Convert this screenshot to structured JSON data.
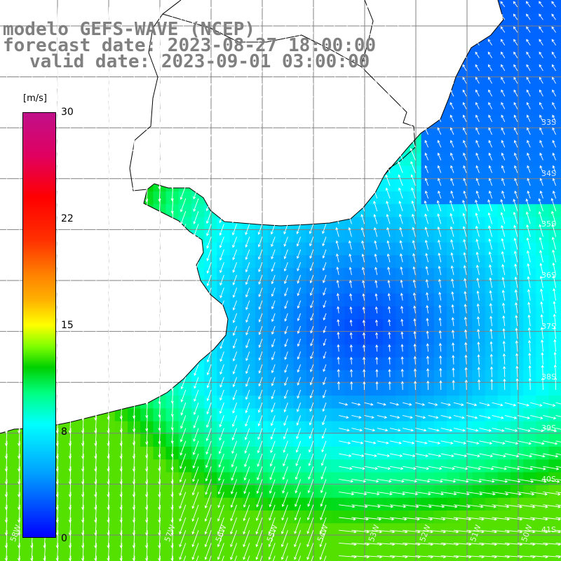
{
  "title": {
    "line1": "modelo GEFS-WAVE (NCEP)",
    "line2": "forecast date: 2023-08-27 18:00:00",
    "line3": "valid date: 2023-09-01 03:00:00"
  },
  "colorbar": {
    "unit": "[m/s]",
    "min": 0,
    "max": 30,
    "ticks": [
      {
        "label": "30",
        "value": 30
      },
      {
        "label": "22",
        "value": 22
      },
      {
        "label": "15",
        "value": 15
      },
      {
        "label": "8",
        "value": 8
      },
      {
        "label": "0",
        "value": 0
      }
    ],
    "colors": [
      "#0000ff",
      "#00a0ff",
      "#00ffff",
      "#00d000",
      "#ffff00",
      "#ff8000",
      "#ff0000",
      "#c0108a"
    ]
  },
  "map": {
    "latitude_labels": [
      "33S",
      "34S",
      "35S",
      "36S",
      "37S",
      "38S",
      "39S",
      "40S",
      "41S"
    ],
    "longitude_labels": [
      "58W",
      "57W",
      "56W",
      "55W",
      "54W",
      "53W",
      "52W",
      "51W",
      "50W"
    ],
    "land_color": "#ffffff",
    "grid_color": "#808080",
    "coastline_color": "#000000",
    "vector_color": "#ffffff"
  }
}
